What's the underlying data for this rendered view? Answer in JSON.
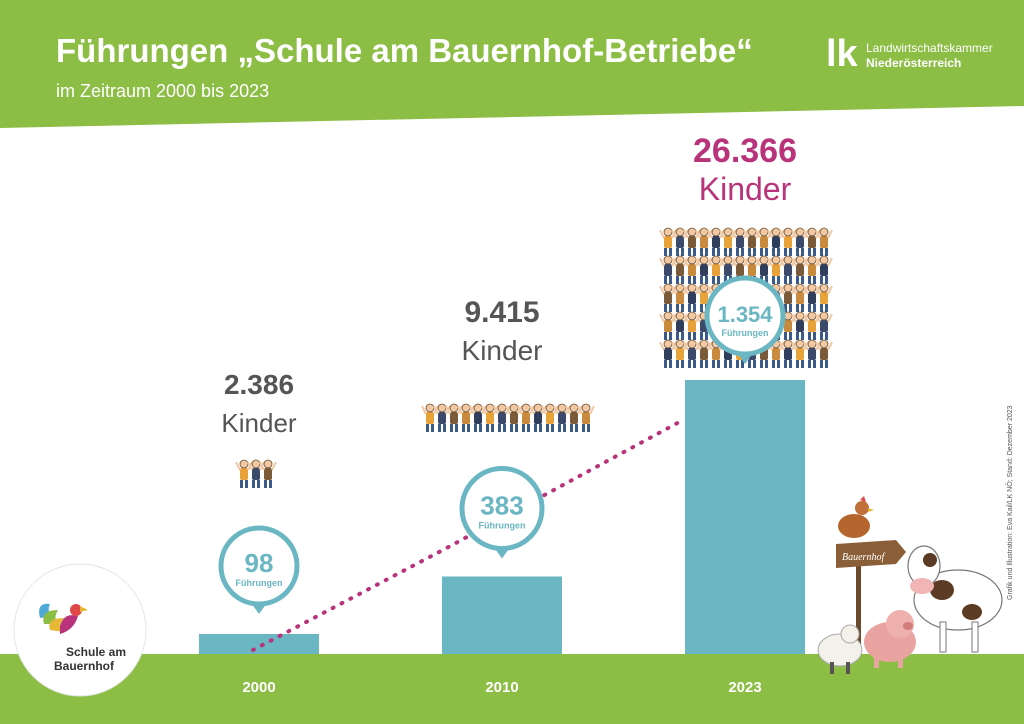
{
  "header": {
    "title": "Führungen „Schule am Bauernhof-Betriebe“",
    "subtitle": "im Zeitraum 2000 bis 2023",
    "brand_mark": "lk",
    "brand_line1": "Landwirtschaftskammer",
    "brand_line2": "Niederösterreich"
  },
  "logo": {
    "line1": "Schule am",
    "line2": "Bauernhof"
  },
  "credit": "Grafik und Illustration: Eva Kail/LK NÖ; Stand: Dezember 2023",
  "sign_text": "Bauernhof",
  "colors": {
    "header_green": "#8cbd45",
    "bar_teal": "#6ab6c3",
    "highlight_magenta": "#b8337a",
    "text_gray": "#555555"
  },
  "chart_data": {
    "type": "bar",
    "title": "Führungen „Schule am Bauernhof-Betriebe“",
    "categories": [
      "2000",
      "2010",
      "2023"
    ],
    "series": [
      {
        "name": "Führungen",
        "values": [
          98,
          383,
          1354
        ]
      },
      {
        "name": "Kinder",
        "values": [
          2386,
          9415,
          26366
        ]
      }
    ],
    "bar_value_labels": [
      "98",
      "383",
      "1.354"
    ],
    "bar_unit_label": "Führungen",
    "kinder_labels": [
      "2.386",
      "9.415",
      "26.366"
    ],
    "kinder_unit_label": "Kinder",
    "ylim": [
      0,
      1354
    ],
    "trend_line": "dotted",
    "xlabel": "",
    "ylabel": ""
  }
}
